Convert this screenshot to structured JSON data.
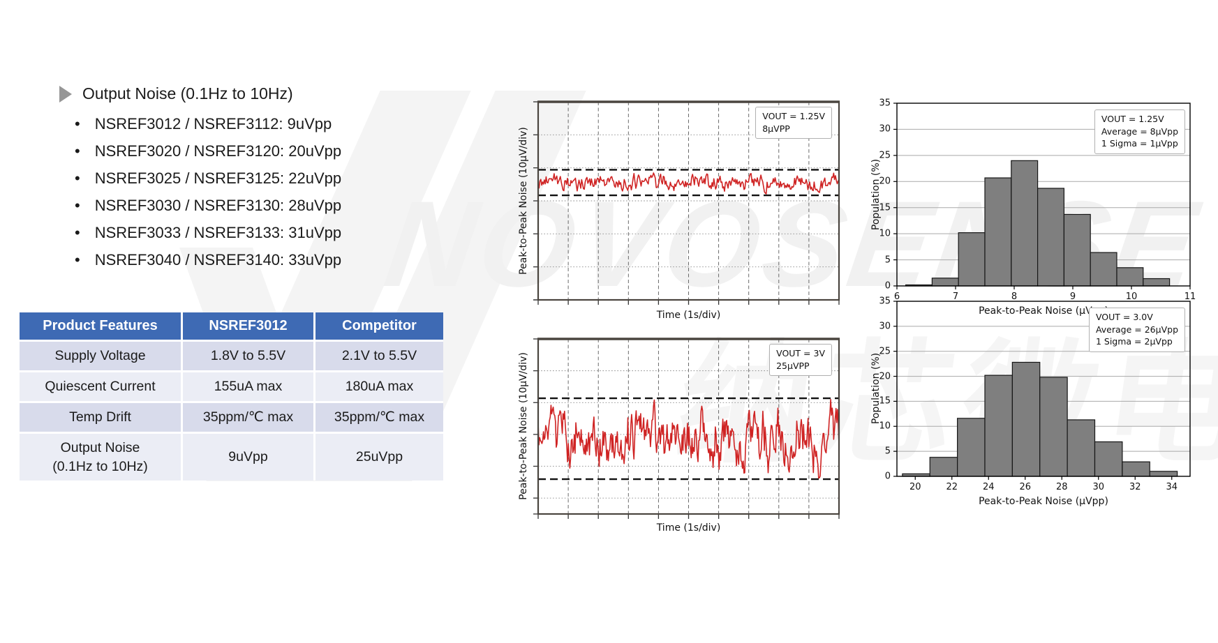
{
  "watermark": {
    "latin": "NOVOSENSE",
    "cjk": "纳芯微电子"
  },
  "heading": {
    "title": "Output Noise (0.1Hz to 10Hz)"
  },
  "bullets": [
    "NSREF3012 / NSREF3112: 9uVpp",
    "NSREF3020 / NSREF3120: 20uVpp",
    "NSREF3025 / NSREF3125: 22uVpp",
    "NSREF3030 / NSREF3130: 28uVpp",
    "NSREF3033 / NSREF3133: 31uVpp",
    "NSREF3040 / NSREF3140: 33uVpp"
  ],
  "table": {
    "headers": [
      "Product Features",
      "NSREF3012",
      "Competitor"
    ],
    "rows": [
      {
        "feature": "Supply Voltage",
        "nsref": "1.8V to 5.5V",
        "competitor": "2.1V to 5.5V"
      },
      {
        "feature": "Quiescent Current",
        "nsref": "155uA max",
        "competitor": "180uA max"
      },
      {
        "feature": "Temp Drift",
        "nsref": "35ppm/℃ max",
        "competitor": "35ppm/℃ max"
      },
      {
        "feature": "Output Noise\n(0.1Hz to 10Hz)",
        "nsref": "9uVpp",
        "competitor": "25uVpp"
      }
    ],
    "header_bg": "#3e6ab4",
    "header_fg": "#ffffff",
    "row_shade_a": "#d8dbeb",
    "row_shade_b": "#ebedf5"
  },
  "chart_data": [
    {
      "id": "noise-trace-vout-1v25",
      "type": "line",
      "ylabel": "Peak-to-Peak Noise (10μV/div)",
      "xlabel": "Time (1s/div)",
      "annotation": [
        "VOUT = 1.25V",
        "8μVPP"
      ],
      "x_divisions": 10,
      "y_divisions": 6,
      "y_scale": "10μV/div",
      "x_scale": "1s/div",
      "peak_to_peak_uVpp": 8,
      "bounds_frac": [
        0.343,
        0.472
      ],
      "trace_color": "#cf2323",
      "seed": 42,
      "n_points": 340,
      "smooth": 0.5,
      "step": 0.6
    },
    {
      "id": "noise-histogram-vout-1v25",
      "type": "bar",
      "ylabel": "Population (%)",
      "xlabel": "Peak-to-Peak Noise (μVpp)",
      "annotation": [
        "VOUT = 1.25V",
        "Average = 8μVpp",
        "1 Sigma = 1μVpp"
      ],
      "xlim": [
        6,
        11
      ],
      "ylim": [
        0,
        35
      ],
      "xticks": [
        6,
        7,
        8,
        9,
        10,
        11
      ],
      "yticks": [
        0,
        5,
        10,
        15,
        20,
        25,
        30,
        35
      ],
      "bin_start": 6.15,
      "bin_width": 0.45,
      "values": [
        0.2,
        1.5,
        10.2,
        20.7,
        24.0,
        18.7,
        13.7,
        6.4,
        3.5,
        1.4
      ],
      "bar_color": "#7f7f7f",
      "grid": "horizontal"
    },
    {
      "id": "noise-trace-vout-3v",
      "type": "line",
      "ylabel": "Peak-to-Peak Noise (10μV/div)",
      "xlabel": "Time (1s/div)",
      "annotation": [
        "VOUT = 3V",
        "25μVPP"
      ],
      "x_divisions": 10,
      "y_divisions": 5.5,
      "y_scale": "10μV/div",
      "x_scale": "1s/div",
      "peak_to_peak_uVpp": 25,
      "bounds_frac": [
        0.339,
        0.801
      ],
      "trace_color": "#cf2323",
      "seed": 1337,
      "n_points": 400,
      "smooth": 0.62,
      "step": 0.62
    },
    {
      "id": "noise-histogram-vout-3v",
      "type": "bar",
      "ylabel": "Population (%)",
      "xlabel": "Peak-to-Peak Noise (μVpp)",
      "annotation": [
        "VOUT = 3.0V",
        "Average = 26μVpp",
        "1 Sigma = 2μVpp"
      ],
      "xlim": [
        19,
        35
      ],
      "ylim": [
        0,
        35
      ],
      "xticks": [
        20,
        22,
        24,
        26,
        28,
        30,
        32,
        34
      ],
      "yticks": [
        0,
        5,
        10,
        15,
        20,
        25,
        30,
        35
      ],
      "bin_start": 19.3,
      "bin_width": 1.5,
      "values": [
        0.5,
        3.8,
        11.6,
        20.2,
        22.8,
        19.8,
        11.3,
        6.9,
        2.9,
        1.0
      ],
      "bar_color": "#7f7f7f",
      "grid": "horizontal"
    }
  ]
}
